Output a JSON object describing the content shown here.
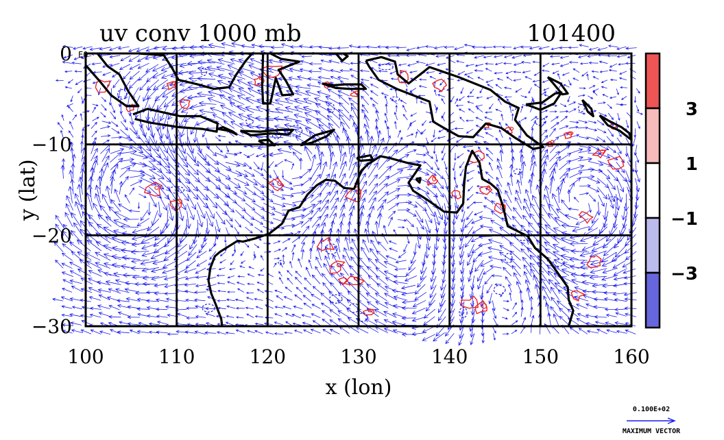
{
  "chart_data": {
    "type": "vector_field_contour",
    "title": "uv conv 1000 mb",
    "time_label": "101400",
    "xlabel": "x (lon)",
    "ylabel": "y (lat)",
    "xlim": [
      100,
      160
    ],
    "ylim": [
      -30,
      0
    ],
    "xticks": [
      "100",
      "110",
      "120",
      "130",
      "140",
      "150",
      "160"
    ],
    "yticks": [
      "0",
      "−10",
      "−20",
      "−30"
    ],
    "y_corner_tag": "E0",
    "grid": true,
    "colorbar": {
      "labels": [
        "3",
        "1",
        "−1",
        "−3"
      ],
      "bands": [
        "#ee5555",
        "#f7bbbb",
        "#ffffff",
        "#bbbbee",
        "#6666dd"
      ]
    },
    "reference_vector": {
      "magnitude_label": "0.100E+02",
      "caption": "MAXIMUM VECTOR"
    },
    "colors": {
      "vectors": "#1a1aee",
      "positive_contour": "#ee2222",
      "negative_contour": "#2222dd",
      "coastline": "#000000",
      "grid": "#000000"
    },
    "positive_contour_centers": [
      [
        102,
        -3.5
      ],
      [
        105,
        -6
      ],
      [
        109.5,
        -3.5
      ],
      [
        111,
        -5.5
      ],
      [
        119,
        -3
      ],
      [
        120.5,
        -2
      ],
      [
        126.5,
        -3.5
      ],
      [
        129.5,
        -4.5
      ],
      [
        135,
        -2.5
      ],
      [
        139,
        -3.5
      ],
      [
        144,
        -8
      ],
      [
        146.5,
        -8.5
      ],
      [
        151,
        -10
      ],
      [
        153,
        -9
      ],
      [
        156.5,
        -11
      ],
      [
        158.5,
        -12
      ],
      [
        158,
        -8
      ],
      [
        107.5,
        -15
      ],
      [
        110,
        -16.5
      ],
      [
        121,
        -14.5
      ],
      [
        129.7,
        -15.5
      ],
      [
        138,
        -14
      ],
      [
        140.8,
        -15.5
      ],
      [
        144,
        -15
      ],
      [
        143,
        -11.5
      ],
      [
        145.5,
        -17
      ],
      [
        126.5,
        -21
      ],
      [
        127.5,
        -23.5
      ],
      [
        128.2,
        -25
      ],
      [
        129.5,
        -25
      ],
      [
        131,
        -28.5
      ],
      [
        142.5,
        -27.5
      ],
      [
        143.5,
        -28
      ],
      [
        154,
        -26.5
      ],
      [
        156,
        -23
      ],
      [
        155,
        -18
      ]
    ],
    "negative_contour_centers": [
      [
        104,
        -4.5
      ],
      [
        113,
        -2
      ],
      [
        118,
        -7.5
      ],
      [
        121,
        -9
      ],
      [
        123,
        -8.5
      ],
      [
        127,
        -6
      ],
      [
        133,
        -1.5
      ],
      [
        134,
        -5
      ],
      [
        147,
        -6
      ],
      [
        150,
        -7.5
      ],
      [
        154.5,
        -6
      ],
      [
        147.5,
        -13
      ],
      [
        148,
        -20
      ],
      [
        146.5,
        -22.5
      ],
      [
        127,
        -21.5
      ],
      [
        127.5,
        -27
      ],
      [
        129.5,
        -28
      ],
      [
        130.5,
        -29
      ],
      [
        141.5,
        -28.5
      ],
      [
        113.5,
        -28
      ],
      [
        110,
        -15
      ],
      [
        121.5,
        -23
      ],
      [
        145.5,
        -26
      ],
      [
        152,
        -23
      ],
      [
        158,
        -16
      ]
    ],
    "circulation_centers": [
      {
        "lon": 106,
        "lat": -16,
        "sense": "anticyclonic"
      },
      {
        "lon": 113,
        "lat": -8.5,
        "sense": "cyclonic"
      },
      {
        "lon": 124,
        "lat": -12.5,
        "sense": "cyclonic"
      },
      {
        "lon": 133,
        "lat": -18.5,
        "sense": "anticyclonic"
      },
      {
        "lon": 138.5,
        "lat": -25.5,
        "sense": "anticyclonic"
      },
      {
        "lon": 144,
        "lat": -25,
        "sense": "cyclonic"
      },
      {
        "lon": 154,
        "lat": -17,
        "sense": "anticyclonic"
      }
    ],
    "coastlines": [
      {
        "name": "Sumatra",
        "points": [
          [
            101.3,
            0
          ],
          [
            102.4,
            -1.4
          ],
          [
            103.7,
            -2.3
          ],
          [
            104.7,
            -4.2
          ],
          [
            105.8,
            -5.8
          ],
          [
            104.5,
            -5.8
          ],
          [
            102.8,
            -4.6
          ],
          [
            101.5,
            -3
          ],
          [
            100,
            -1.3
          ]
        ]
      },
      {
        "name": "Borneo",
        "points": [
          [
            105.8,
            0
          ],
          [
            108.6,
            -0.2
          ],
          [
            109.5,
            -1.6
          ],
          [
            110.2,
            -2.9
          ],
          [
            112.3,
            -3.4
          ],
          [
            114.1,
            -3.9
          ],
          [
            115.8,
            -3.7
          ],
          [
            116.5,
            -2.4
          ],
          [
            117.6,
            -0.8
          ],
          [
            118.3,
            0
          ]
        ]
      },
      {
        "name": "Java",
        "points": [
          [
            105.2,
            -6.7
          ],
          [
            106.8,
            -6.1
          ],
          [
            110.4,
            -6.9
          ],
          [
            112.6,
            -6.9
          ],
          [
            114.5,
            -7.7
          ],
          [
            114.4,
            -8.6
          ],
          [
            112.8,
            -8.3
          ],
          [
            110.2,
            -8.1
          ],
          [
            107,
            -7.6
          ],
          [
            105.4,
            -7.2
          ]
        ]
      },
      {
        "name": "Bali-Lombok",
        "points": [
          [
            114.5,
            -8.3
          ],
          [
            115.7,
            -8.5
          ],
          [
            116.6,
            -8.9
          ],
          [
            116.2,
            -8.6
          ],
          [
            115.1,
            -8.1
          ],
          [
            114.5,
            -8.3
          ]
        ]
      },
      {
        "name": "Sumbawa-Flores",
        "points": [
          [
            117,
            -8.5
          ],
          [
            119.2,
            -8.6
          ],
          [
            121.5,
            -8.4
          ],
          [
            122.8,
            -8.4
          ],
          [
            122.3,
            -8.9
          ],
          [
            120.3,
            -8.8
          ],
          [
            118.2,
            -9
          ],
          [
            117,
            -8.5
          ]
        ]
      },
      {
        "name": "Sumba",
        "points": [
          [
            119,
            -9.6
          ],
          [
            120.1,
            -9.5
          ],
          [
            120.8,
            -10.1
          ],
          [
            119.7,
            -10
          ],
          [
            119,
            -9.6
          ]
        ]
      },
      {
        "name": "Timor",
        "points": [
          [
            123.6,
            -10.1
          ],
          [
            125.2,
            -9
          ],
          [
            127.3,
            -8.4
          ],
          [
            126.5,
            -9.1
          ],
          [
            124.9,
            -9.8
          ],
          [
            123.6,
            -10.1
          ]
        ]
      },
      {
        "name": "Sulawesi",
        "points": [
          [
            119.5,
            0
          ],
          [
            119.4,
            -3.5
          ],
          [
            119.5,
            -5.5
          ],
          [
            120.3,
            -5.5
          ],
          [
            120.9,
            -2.7
          ],
          [
            121.6,
            -4.6
          ],
          [
            122.8,
            -4.5
          ],
          [
            122,
            -3
          ],
          [
            121.2,
            -1.8
          ],
          [
            123.5,
            -0.9
          ],
          [
            121.5,
            -0.6
          ],
          [
            120.3,
            0
          ]
        ]
      },
      {
        "name": "Seram-Buru",
        "points": [
          [
            126,
            -3.3
          ],
          [
            127.3,
            -3.5
          ],
          [
            128.5,
            -3.4
          ],
          [
            130.3,
            -3.4
          ],
          [
            130.8,
            -3.9
          ],
          [
            129,
            -3.9
          ],
          [
            127.5,
            -3.8
          ],
          [
            126,
            -3.3
          ]
        ]
      },
      {
        "name": "Halmahera",
        "points": [
          [
            127.5,
            0
          ],
          [
            128.2,
            -0.8
          ],
          [
            128.8,
            -0.3
          ],
          [
            128.3,
            0
          ]
        ]
      },
      {
        "name": "New Guinea",
        "points": [
          [
            130.8,
            -0.8
          ],
          [
            132.5,
            -0.4
          ],
          [
            134,
            -0.9
          ],
          [
            134.3,
            -2.3
          ],
          [
            135.5,
            -3.3
          ],
          [
            137.8,
            -1.5
          ],
          [
            141,
            -2.6
          ],
          [
            144.5,
            -4
          ],
          [
            146.1,
            -5.3
          ],
          [
            147.6,
            -6
          ],
          [
            147.2,
            -7.3
          ],
          [
            148.5,
            -9
          ],
          [
            150.3,
            -10.3
          ],
          [
            149.2,
            -10.5
          ],
          [
            147.1,
            -9.2
          ],
          [
            145.7,
            -8.2
          ],
          [
            144,
            -7.7
          ],
          [
            142.6,
            -9.2
          ],
          [
            141,
            -9.1
          ],
          [
            139.4,
            -8.2
          ],
          [
            138.2,
            -7.5
          ],
          [
            137.8,
            -5.3
          ],
          [
            134.2,
            -3.9
          ],
          [
            132.2,
            -2.9
          ],
          [
            131.2,
            -1.5
          ],
          [
            130.8,
            -0.8
          ]
        ]
      },
      {
        "name": "New Britain",
        "points": [
          [
            148.4,
            -5.6
          ],
          [
            150.2,
            -5.4
          ],
          [
            151.6,
            -4.4
          ],
          [
            152.3,
            -4.3
          ],
          [
            151.5,
            -5.5
          ],
          [
            150,
            -6.2
          ],
          [
            148.4,
            -5.6
          ]
        ]
      },
      {
        "name": "New Ireland",
        "points": [
          [
            150.8,
            -2.6
          ],
          [
            152.2,
            -3.3
          ],
          [
            153,
            -4.4
          ],
          [
            152.4,
            -4.5
          ],
          [
            151.5,
            -3.4
          ],
          [
            150.8,
            -2.6
          ]
        ]
      },
      {
        "name": "Bougainville",
        "points": [
          [
            154.6,
            -5.1
          ],
          [
            155.6,
            -6.1
          ],
          [
            155.8,
            -6.9
          ],
          [
            155.2,
            -6.4
          ],
          [
            154.6,
            -5.1
          ]
        ]
      },
      {
        "name": "Solomons",
        "points": [
          [
            156.5,
            -6.8
          ],
          [
            157.5,
            -7.4
          ],
          [
            158.9,
            -8.1
          ],
          [
            159.8,
            -8.8
          ],
          [
            160,
            -9.5
          ],
          [
            158.7,
            -8.5
          ],
          [
            157.4,
            -7.9
          ],
          [
            156.5,
            -6.8
          ]
        ]
      },
      {
        "name": "Melville Is.",
        "points": [
          [
            129.8,
            -11.5
          ],
          [
            131.3,
            -11.2
          ],
          [
            131.6,
            -11.7
          ],
          [
            130.2,
            -11.8
          ],
          [
            129.8,
            -11.5
          ]
        ]
      },
      {
        "name": "Groote Eylandt",
        "points": [
          [
            136.3,
            -13.8
          ],
          [
            136.8,
            -13.7
          ],
          [
            136.7,
            -14.2
          ],
          [
            136.3,
            -13.8
          ]
        ]
      },
      {
        "name": "Australia",
        "points": [
          [
            160,
            -30
          ],
          [
            153.1,
            -30
          ],
          [
            153.6,
            -28.3
          ],
          [
            153.1,
            -27.1
          ],
          [
            153,
            -25.7
          ],
          [
            151.8,
            -24
          ],
          [
            150.8,
            -22.6
          ],
          [
            149.4,
            -21.4
          ],
          [
            148.6,
            -20.1
          ],
          [
            146.4,
            -19
          ],
          [
            145.9,
            -16.9
          ],
          [
            145.3,
            -15
          ],
          [
            144.5,
            -14.3
          ],
          [
            143.6,
            -13.8
          ],
          [
            143.3,
            -12
          ],
          [
            142.5,
            -10.7
          ],
          [
            141.8,
            -12.5
          ],
          [
            141.6,
            -14.5
          ],
          [
            141.5,
            -16.5
          ],
          [
            140.8,
            -17.5
          ],
          [
            139.4,
            -17.4
          ],
          [
            137.7,
            -16.2
          ],
          [
            136,
            -15.1
          ],
          [
            135.5,
            -14.2
          ],
          [
            136.2,
            -13.2
          ],
          [
            136.8,
            -12.3
          ],
          [
            135.6,
            -12.1
          ],
          [
            133.4,
            -11.5
          ],
          [
            132.4,
            -11.3
          ],
          [
            131,
            -12.2
          ],
          [
            130.3,
            -12.9
          ],
          [
            129.5,
            -14.9
          ],
          [
            128.4,
            -14.8
          ],
          [
            127.4,
            -14
          ],
          [
            126.4,
            -13.9
          ],
          [
            125.4,
            -14.5
          ],
          [
            124.4,
            -15.5
          ],
          [
            123.5,
            -16.9
          ],
          [
            122.3,
            -17.3
          ],
          [
            121.6,
            -18.7
          ],
          [
            120.2,
            -19.8
          ],
          [
            118.8,
            -20.3
          ],
          [
            117.3,
            -20.7
          ],
          [
            116.7,
            -20.6
          ],
          [
            114.8,
            -21.8
          ],
          [
            114.2,
            -22.3
          ],
          [
            113.7,
            -23.6
          ],
          [
            113.5,
            -25
          ],
          [
            113.8,
            -26.4
          ],
          [
            114.3,
            -27.6
          ],
          [
            114.9,
            -29.2
          ],
          [
            115,
            -30
          ]
        ]
      }
    ]
  }
}
